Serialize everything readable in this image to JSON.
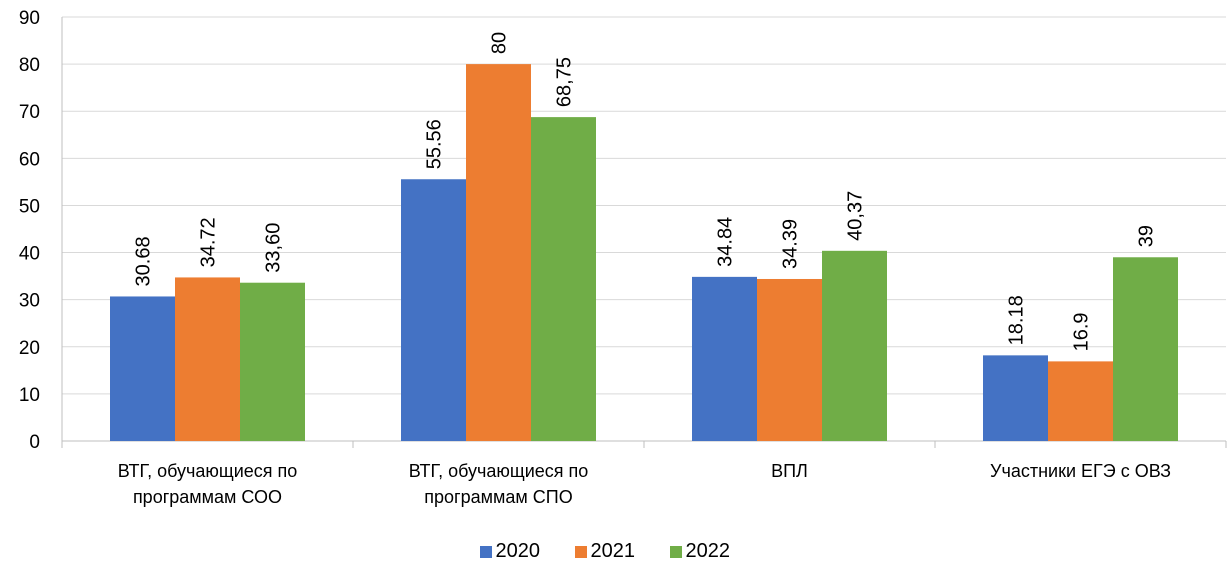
{
  "chart_data": {
    "type": "bar",
    "categories": [
      "ВТГ, обучающиеся по программам СОО",
      "ВТГ, обучающиеся по программам СПО",
      "ВПЛ",
      "Участники ЕГЭ с ОВЗ"
    ],
    "series": [
      {
        "name": "2020",
        "color": "#4472c4",
        "values": [
          30.68,
          55.56,
          34.84,
          18.18
        ]
      },
      {
        "name": "2021",
        "color": "#ed7d31",
        "values": [
          34.72,
          80,
          34.39,
          16.9
        ]
      },
      {
        "name": "2022",
        "color": "#70ad47",
        "values": [
          33.6,
          68.75,
          40.37,
          39
        ],
        "value_labels": [
          "33,60",
          "68,75",
          "40,37",
          "39"
        ]
      }
    ],
    "ylim": [
      0,
      90
    ],
    "yticks": [
      0,
      10,
      20,
      30,
      40,
      50,
      60,
      70,
      80,
      90
    ],
    "grid": true,
    "legend": "bottom"
  }
}
